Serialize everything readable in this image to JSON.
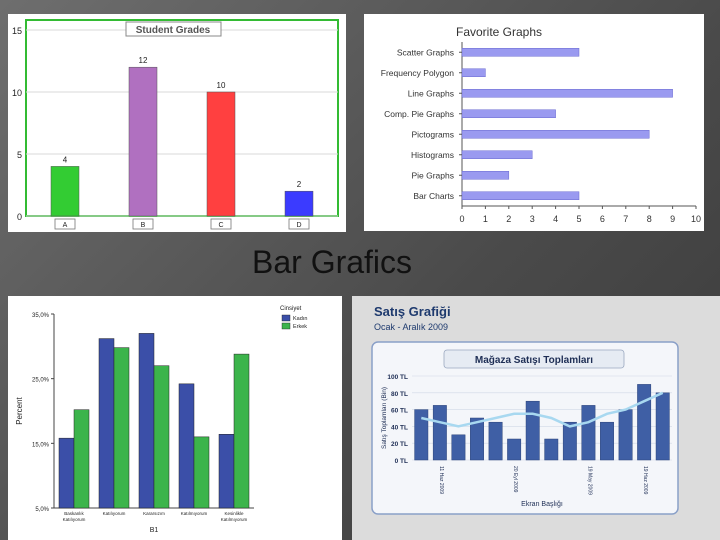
{
  "slide_title": "Bar Grafics",
  "chart_data": [
    {
      "type": "bar",
      "title": "Student Grades",
      "categories": [
        "A",
        "B",
        "C",
        "D"
      ],
      "values": [
        4,
        12,
        10,
        2
      ],
      "colors": [
        "#33cc33",
        "#b070c0",
        "#ff4040",
        "#3b3bff"
      ],
      "ylim": [
        0,
        15
      ],
      "yticks": [
        0,
        5,
        10,
        15
      ],
      "grid": true
    },
    {
      "type": "bar",
      "orientation": "horizontal",
      "title": "Favorite Graphs",
      "categories": [
        "Scatter Graphs",
        "Frequency Polygon",
        "Line Graphs",
        "Comp. Pie Graphs",
        "Pictograms",
        "Histograms",
        "Pie Graphs",
        "Bar Charts"
      ],
      "values": [
        5,
        1,
        9,
        4,
        8,
        3,
        2,
        5
      ],
      "color": "#9a9af0",
      "xlim": [
        0,
        10
      ],
      "xticks": [
        0,
        1,
        2,
        3,
        4,
        5,
        6,
        7,
        8,
        9,
        10
      ]
    },
    {
      "type": "bar",
      "categories": [
        "Baskanlık Katılıyorum",
        "Katılıyorum",
        "Kararsızım",
        "Katılmıyorum",
        "Kesinlikle Katılmıyorum"
      ],
      "series": [
        {
          "name": "Kadın",
          "values": [
            15.8,
            31.2,
            32.0,
            24.2,
            16.4
          ],
          "color": "#3b4fa8"
        },
        {
          "name": "Erkek",
          "values": [
            20.2,
            29.8,
            27.0,
            16.0,
            28.8
          ],
          "color": "#3cb44b"
        }
      ],
      "legend_title": "Cinsiyet",
      "ylabel": "Percent",
      "xlabel": "B1",
      "ylim": [
        5,
        35
      ],
      "yticks": [
        "5,0%",
        "15,0%",
        "25,0%",
        "35,0%"
      ],
      "legend_position": "top-right"
    },
    {
      "type": "bar",
      "title": "Satış Grafiği",
      "subtitle": "Ocak - Aralık 2009",
      "inner_title": "Mağaza Satışı Toplamları",
      "ylabel": "Satış Toplamları (Bin)",
      "xlabel": "Ekran Başlığı",
      "ylim": [
        0,
        100
      ],
      "yticks": [
        "0 TL",
        "20 TL",
        "40 TL",
        "60 TL",
        "80 TL",
        "100 TL"
      ],
      "bar_values": [
        60,
        65,
        30,
        50,
        45,
        25,
        70,
        25,
        45,
        65,
        45,
        60,
        90,
        80
      ],
      "line_values": [
        50,
        45,
        40,
        45,
        50,
        55,
        55,
        50,
        40,
        45,
        55,
        60,
        70,
        80
      ],
      "xtick_labels": [
        "11 Haz 2009",
        "20 Eyl 2009",
        "19 May 2009",
        "19 Haz 2009"
      ],
      "bar_color": "#3f5fa5",
      "line_color": "#a8d8f0"
    }
  ]
}
